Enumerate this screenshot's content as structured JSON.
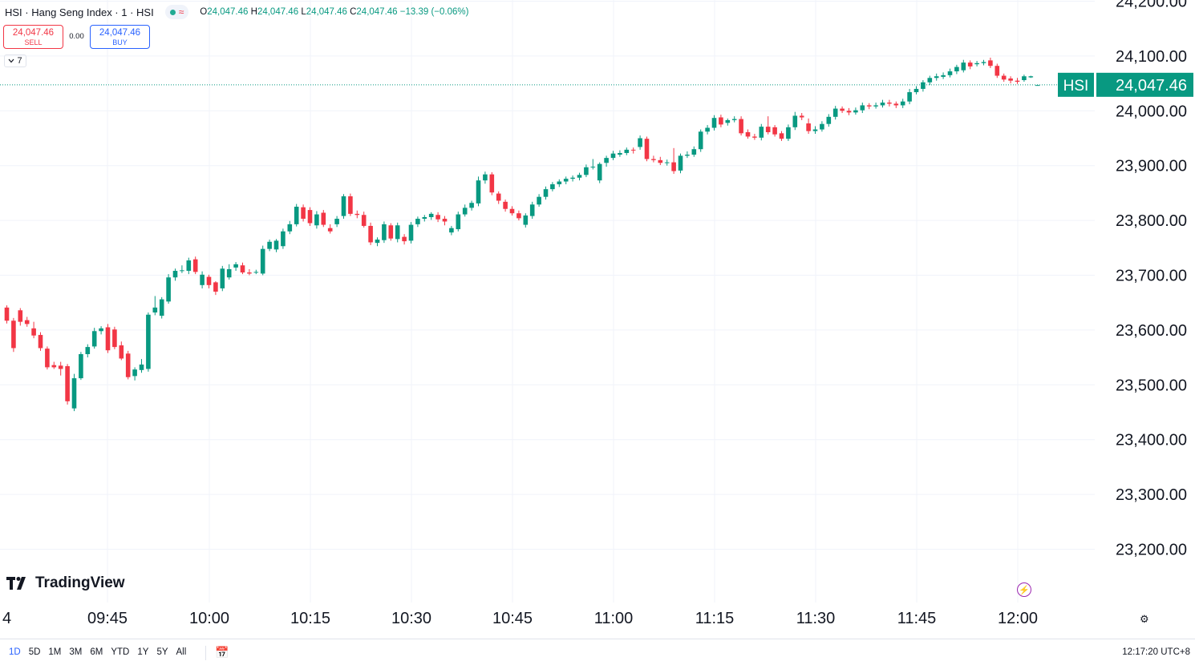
{
  "header": {
    "symbol_title": "HSI · Hang Seng Index · 1 · HSI",
    "ohlc": {
      "o_label": "O",
      "o": "24,047.46",
      "h_label": "H",
      "h": "24,047.46",
      "l_label": "L",
      "l": "24,047.46",
      "c_label": "C",
      "c": "24,047.46",
      "change": "−13.39 (−0.06%)"
    }
  },
  "trade": {
    "sell_price": "24,047.46",
    "sell_label": "SELL",
    "spread": "0.00",
    "buy_price": "24,047.46",
    "buy_label": "BUY"
  },
  "indicators_count": "7",
  "logo_text": "TradingView",
  "price_label": {
    "symbol": "HSI",
    "value": "24,047.46"
  },
  "ranges": [
    "1D",
    "5D",
    "1M",
    "3M",
    "6M",
    "YTD",
    "1Y",
    "5Y",
    "All"
  ],
  "active_range": "1D",
  "clock": "12:17:20 UTC+8",
  "colors": {
    "up": "#089981",
    "down": "#f23645",
    "grid": "#f0f3fa",
    "price_badge": "#089981"
  },
  "chart_data": {
    "type": "candlestick",
    "title": "",
    "y_ticks": [
      "24,200.00",
      "24,100.00",
      "24,000.00",
      "23,900.00",
      "23,800.00",
      "23,700.00",
      "23,600.00",
      "23,500.00",
      "23,400.00",
      "23,300.00",
      "23,200.00"
    ],
    "ylim": [
      23130,
      24205
    ],
    "x_ticks": [
      "4",
      "09:45",
      "10:00",
      "10:15",
      "10:30",
      "10:45",
      "11:00",
      "11:15",
      "11:30",
      "11:45",
      "12:00"
    ],
    "last_price": 24047.46,
    "candles": [
      {
        "o": 23641,
        "c": 23617,
        "h": 23645,
        "l": 23612
      },
      {
        "o": 23617,
        "c": 23567,
        "h": 23622,
        "l": 23560
      },
      {
        "o": 23636,
        "c": 23615,
        "h": 23640,
        "l": 23608
      },
      {
        "o": 23618,
        "c": 23611,
        "h": 23624,
        "l": 23606
      },
      {
        "o": 23603,
        "c": 23590,
        "h": 23615,
        "l": 23585
      },
      {
        "o": 23591,
        "c": 23567,
        "h": 23596,
        "l": 23562
      },
      {
        "o": 23566,
        "c": 23532,
        "h": 23570,
        "l": 23528
      },
      {
        "o": 23536,
        "c": 23532,
        "h": 23542,
        "l": 23529
      },
      {
        "o": 23535,
        "c": 23529,
        "h": 23542,
        "l": 23517
      },
      {
        "o": 23534,
        "c": 23470,
        "h": 23538,
        "l": 23464
      },
      {
        "o": 23457,
        "c": 23512,
        "h": 23520,
        "l": 23452
      },
      {
        "o": 23512,
        "c": 23556,
        "h": 23560,
        "l": 23509
      },
      {
        "o": 23556,
        "c": 23569,
        "h": 23574,
        "l": 23550
      },
      {
        "o": 23570,
        "c": 23598,
        "h": 23604,
        "l": 23566
      },
      {
        "o": 23598,
        "c": 23603,
        "h": 23607,
        "l": 23592
      },
      {
        "o": 23605,
        "c": 23563,
        "h": 23611,
        "l": 23558
      },
      {
        "o": 23601,
        "c": 23569,
        "h": 23606,
        "l": 23565
      },
      {
        "o": 23572,
        "c": 23548,
        "h": 23579,
        "l": 23545
      },
      {
        "o": 23557,
        "c": 23514,
        "h": 23562,
        "l": 23510
      },
      {
        "o": 23516,
        "c": 23528,
        "h": 23532,
        "l": 23508
      },
      {
        "o": 23527,
        "c": 23537,
        "h": 23547,
        "l": 23522
      },
      {
        "o": 23529,
        "c": 23628,
        "h": 23632,
        "l": 23524
      },
      {
        "o": 23632,
        "c": 23641,
        "h": 23662,
        "l": 23627
      },
      {
        "o": 23626,
        "c": 23656,
        "h": 23660,
        "l": 23621
      },
      {
        "o": 23652,
        "c": 23696,
        "h": 23702,
        "l": 23648
      },
      {
        "o": 23696,
        "c": 23708,
        "h": 23712,
        "l": 23690
      },
      {
        "o": 23708,
        "c": 23709,
        "h": 23718,
        "l": 23704
      },
      {
        "o": 23708,
        "c": 23727,
        "h": 23732,
        "l": 23702
      },
      {
        "o": 23729,
        "c": 23706,
        "h": 23734,
        "l": 23702
      },
      {
        "o": 23682,
        "c": 23701,
        "h": 23707,
        "l": 23676
      },
      {
        "o": 23697,
        "c": 23682,
        "h": 23701,
        "l": 23676
      },
      {
        "o": 23687,
        "c": 23670,
        "h": 23689,
        "l": 23664
      },
      {
        "o": 23676,
        "c": 23712,
        "h": 23717,
        "l": 23671
      },
      {
        "o": 23696,
        "c": 23711,
        "h": 23720,
        "l": 23692
      },
      {
        "o": 23714,
        "c": 23720,
        "h": 23724,
        "l": 23708
      },
      {
        "o": 23718,
        "c": 23705,
        "h": 23723,
        "l": 23702
      },
      {
        "o": 23705,
        "c": 23703,
        "h": 23711,
        "l": 23700
      },
      {
        "o": 23705,
        "c": 23706,
        "h": 23710,
        "l": 23702
      },
      {
        "o": 23703,
        "c": 23748,
        "h": 23754,
        "l": 23700
      },
      {
        "o": 23748,
        "c": 23761,
        "h": 23765,
        "l": 23744
      },
      {
        "o": 23747,
        "c": 23763,
        "h": 23766,
        "l": 23742
      },
      {
        "o": 23753,
        "c": 23780,
        "h": 23785,
        "l": 23748
      },
      {
        "o": 23780,
        "c": 23793,
        "h": 23799,
        "l": 23775
      },
      {
        "o": 23793,
        "c": 23825,
        "h": 23830,
        "l": 23789
      },
      {
        "o": 23824,
        "c": 23803,
        "h": 23829,
        "l": 23798
      },
      {
        "o": 23819,
        "c": 23795,
        "h": 23824,
        "l": 23790
      },
      {
        "o": 23791,
        "c": 23811,
        "h": 23817,
        "l": 23785
      },
      {
        "o": 23814,
        "c": 23792,
        "h": 23819,
        "l": 23788
      },
      {
        "o": 23786,
        "c": 23780,
        "h": 23793,
        "l": 23776
      },
      {
        "o": 23793,
        "c": 23803,
        "h": 23808,
        "l": 23788
      },
      {
        "o": 23808,
        "c": 23844,
        "h": 23848,
        "l": 23803
      },
      {
        "o": 23844,
        "c": 23812,
        "h": 23849,
        "l": 23808
      },
      {
        "o": 23812,
        "c": 23810,
        "h": 23818,
        "l": 23804
      },
      {
        "o": 23810,
        "c": 23790,
        "h": 23816,
        "l": 23787
      },
      {
        "o": 23790,
        "c": 23760,
        "h": 23796,
        "l": 23755
      },
      {
        "o": 23759,
        "c": 23765,
        "h": 23769,
        "l": 23753
      },
      {
        "o": 23764,
        "c": 23793,
        "h": 23798,
        "l": 23759
      },
      {
        "o": 23791,
        "c": 23767,
        "h": 23795,
        "l": 23763
      },
      {
        "o": 23766,
        "c": 23791,
        "h": 23796,
        "l": 23760
      },
      {
        "o": 23770,
        "c": 23762,
        "h": 23775,
        "l": 23756
      },
      {
        "o": 23763,
        "c": 23792,
        "h": 23797,
        "l": 23758
      },
      {
        "o": 23793,
        "c": 23803,
        "h": 23807,
        "l": 23788
      },
      {
        "o": 23803,
        "c": 23806,
        "h": 23810,
        "l": 23798
      },
      {
        "o": 23806,
        "c": 23812,
        "h": 23815,
        "l": 23801
      },
      {
        "o": 23810,
        "c": 23802,
        "h": 23815,
        "l": 23797
      },
      {
        "o": 23803,
        "c": 23798,
        "h": 23808,
        "l": 23791
      },
      {
        "o": 23778,
        "c": 23786,
        "h": 23790,
        "l": 23773
      },
      {
        "o": 23784,
        "c": 23811,
        "h": 23816,
        "l": 23780
      },
      {
        "o": 23811,
        "c": 23823,
        "h": 23829,
        "l": 23807
      },
      {
        "o": 23823,
        "c": 23832,
        "h": 23836,
        "l": 23818
      },
      {
        "o": 23831,
        "c": 23873,
        "h": 23880,
        "l": 23826
      },
      {
        "o": 23873,
        "c": 23884,
        "h": 23889,
        "l": 23867
      },
      {
        "o": 23884,
        "c": 23851,
        "h": 23888,
        "l": 23846
      },
      {
        "o": 23849,
        "c": 23836,
        "h": 23853,
        "l": 23830
      },
      {
        "o": 23834,
        "c": 23821,
        "h": 23838,
        "l": 23816
      },
      {
        "o": 23821,
        "c": 23813,
        "h": 23826,
        "l": 23809
      },
      {
        "o": 23813,
        "c": 23804,
        "h": 23818,
        "l": 23800
      },
      {
        "o": 23792,
        "c": 23809,
        "h": 23813,
        "l": 23787
      },
      {
        "o": 23808,
        "c": 23829,
        "h": 23834,
        "l": 23803
      },
      {
        "o": 23829,
        "c": 23843,
        "h": 23848,
        "l": 23825
      },
      {
        "o": 23843,
        "c": 23857,
        "h": 23862,
        "l": 23838
      },
      {
        "o": 23857,
        "c": 23866,
        "h": 23870,
        "l": 23853
      },
      {
        "o": 23866,
        "c": 23871,
        "h": 23875,
        "l": 23861
      },
      {
        "o": 23871,
        "c": 23876,
        "h": 23880,
        "l": 23866
      },
      {
        "o": 23876,
        "c": 23878,
        "h": 23882,
        "l": 23871
      },
      {
        "o": 23878,
        "c": 23883,
        "h": 23887,
        "l": 23873
      },
      {
        "o": 23883,
        "c": 23897,
        "h": 23902,
        "l": 23879
      },
      {
        "o": 23897,
        "c": 23898,
        "h": 23912,
        "l": 23893
      },
      {
        "o": 23873,
        "c": 23903,
        "h": 23906,
        "l": 23868
      },
      {
        "o": 23905,
        "c": 23914,
        "h": 23918,
        "l": 23898
      },
      {
        "o": 23914,
        "c": 23922,
        "h": 23927,
        "l": 23910
      },
      {
        "o": 23920,
        "c": 23923,
        "h": 23928,
        "l": 23916
      },
      {
        "o": 23923,
        "c": 23929,
        "h": 23933,
        "l": 23919
      },
      {
        "o": 23929,
        "c": 23928,
        "h": 23933,
        "l": 23922
      },
      {
        "o": 23934,
        "c": 23950,
        "h": 23955,
        "l": 23929
      },
      {
        "o": 23949,
        "c": 23912,
        "h": 23953,
        "l": 23908
      },
      {
        "o": 23912,
        "c": 23910,
        "h": 23918,
        "l": 23906
      },
      {
        "o": 23910,
        "c": 23905,
        "h": 23916,
        "l": 23901
      },
      {
        "o": 23905,
        "c": 23906,
        "h": 23911,
        "l": 23900
      },
      {
        "o": 23906,
        "c": 23890,
        "h": 23932,
        "l": 23885
      },
      {
        "o": 23891,
        "c": 23918,
        "h": 23922,
        "l": 23886
      },
      {
        "o": 23918,
        "c": 23920,
        "h": 23926,
        "l": 23914
      },
      {
        "o": 23920,
        "c": 23930,
        "h": 23935,
        "l": 23916
      },
      {
        "o": 23930,
        "c": 23962,
        "h": 23966,
        "l": 23925
      },
      {
        "o": 23962,
        "c": 23969,
        "h": 23974,
        "l": 23957
      },
      {
        "o": 23969,
        "c": 23987,
        "h": 23992,
        "l": 23964
      },
      {
        "o": 23988,
        "c": 23975,
        "h": 23993,
        "l": 23970
      },
      {
        "o": 23978,
        "c": 23983,
        "h": 23986,
        "l": 23973
      },
      {
        "o": 23983,
        "c": 23985,
        "h": 23990,
        "l": 23979
      },
      {
        "o": 23985,
        "c": 23959,
        "h": 23990,
        "l": 23955
      },
      {
        "o": 23961,
        "c": 23953,
        "h": 23966,
        "l": 23949
      },
      {
        "o": 23953,
        "c": 23951,
        "h": 23958,
        "l": 23947
      },
      {
        "o": 23951,
        "c": 23971,
        "h": 23976,
        "l": 23946
      },
      {
        "o": 23971,
        "c": 23961,
        "h": 23990,
        "l": 23957
      },
      {
        "o": 23970,
        "c": 23957,
        "h": 23974,
        "l": 23953
      },
      {
        "o": 23959,
        "c": 23949,
        "h": 23963,
        "l": 23945
      },
      {
        "o": 23949,
        "c": 23970,
        "h": 23975,
        "l": 23945
      },
      {
        "o": 23970,
        "c": 23991,
        "h": 23998,
        "l": 23965
      },
      {
        "o": 23991,
        "c": 23988,
        "h": 23996,
        "l": 23983
      },
      {
        "o": 23977,
        "c": 23963,
        "h": 23986,
        "l": 23958
      },
      {
        "o": 23963,
        "c": 23966,
        "h": 23972,
        "l": 23958
      },
      {
        "o": 23966,
        "c": 23976,
        "h": 23981,
        "l": 23962
      },
      {
        "o": 23976,
        "c": 23989,
        "h": 23994,
        "l": 23971
      },
      {
        "o": 23989,
        "c": 24004,
        "h": 24009,
        "l": 23984
      },
      {
        "o": 24004,
        "c": 24000,
        "h": 24008,
        "l": 23996
      },
      {
        "o": 24000,
        "c": 23997,
        "h": 24005,
        "l": 23992
      },
      {
        "o": 23997,
        "c": 24001,
        "h": 24006,
        "l": 23993
      },
      {
        "o": 24001,
        "c": 24010,
        "h": 24015,
        "l": 23996
      },
      {
        "o": 24010,
        "c": 24008,
        "h": 24014,
        "l": 24003
      },
      {
        "o": 24008,
        "c": 24010,
        "h": 24015,
        "l": 24004
      },
      {
        "o": 24010,
        "c": 24015,
        "h": 24020,
        "l": 24006
      },
      {
        "o": 24015,
        "c": 24013,
        "h": 24020,
        "l": 24008
      },
      {
        "o": 24013,
        "c": 24010,
        "h": 24017,
        "l": 24005
      },
      {
        "o": 24010,
        "c": 24017,
        "h": 24022,
        "l": 24005
      },
      {
        "o": 24017,
        "c": 24034,
        "h": 24040,
        "l": 24012
      },
      {
        "o": 24034,
        "c": 24040,
        "h": 24045,
        "l": 24030
      },
      {
        "o": 24040,
        "c": 24052,
        "h": 24056,
        "l": 24035
      },
      {
        "o": 24052,
        "c": 24060,
        "h": 24064,
        "l": 24047
      },
      {
        "o": 24060,
        "c": 24063,
        "h": 24068,
        "l": 24055
      },
      {
        "o": 24062,
        "c": 24065,
        "h": 24070,
        "l": 24058
      },
      {
        "o": 24065,
        "c": 24072,
        "h": 24077,
        "l": 24061
      },
      {
        "o": 24072,
        "c": 24080,
        "h": 24084,
        "l": 24067
      },
      {
        "o": 24074,
        "c": 24088,
        "h": 24093,
        "l": 24070
      },
      {
        "o": 24088,
        "c": 24081,
        "h": 24092,
        "l": 24076
      },
      {
        "o": 24085,
        "c": 24087,
        "h": 24091,
        "l": 24081
      },
      {
        "o": 24087,
        "c": 24089,
        "h": 24093,
        "l": 24083
      },
      {
        "o": 24092,
        "c": 24082,
        "h": 24097,
        "l": 24078
      },
      {
        "o": 24082,
        "c": 24064,
        "h": 24086,
        "l": 24060
      },
      {
        "o": 24064,
        "c": 24057,
        "h": 24068,
        "l": 24053
      },
      {
        "o": 24059,
        "c": 24055,
        "h": 24063,
        "l": 24050
      },
      {
        "o": 24055,
        "c": 24053,
        "h": 24060,
        "l": 24049
      },
      {
        "o": 24056,
        "c": 24063,
        "h": 24066,
        "l": 24053
      },
      {
        "o": 24061,
        "c": 24063,
        "h": 24064,
        "l": 24060
      },
      {
        "o": 24047,
        "c": 24047,
        "h": 24048,
        "l": 24046
      }
    ]
  }
}
